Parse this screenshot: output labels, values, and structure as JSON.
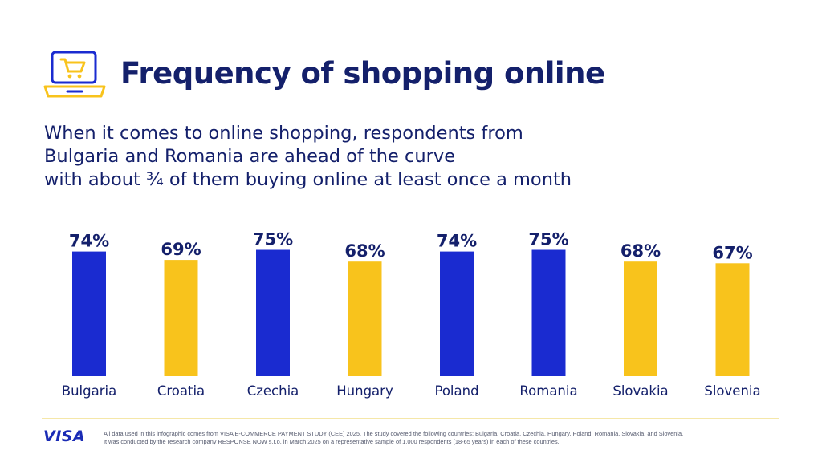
{
  "header": {
    "title": "Frequency of shopping online",
    "icon": "laptop-cart-icon"
  },
  "subtitle": {
    "lines": [
      "When it comes to online shopping, respondents from",
      "Bulgaria and Romania are ahead of the curve",
      "with about ¾ of them buying online at least once a month"
    ]
  },
  "colors": {
    "navy": "#14206b",
    "blue": "#1a2bd0",
    "yellow": "#f8c31c"
  },
  "chart_data": {
    "type": "bar",
    "categories": [
      "Bulgaria",
      "Croatia",
      "Czechia",
      "Hungary",
      "Poland",
      "Romania",
      "Slovakia",
      "Slovenia"
    ],
    "values": [
      74,
      69,
      75,
      68,
      74,
      75,
      68,
      67
    ],
    "value_labels": [
      "74%",
      "69%",
      "75%",
      "68%",
      "74%",
      "75%",
      "68%",
      "67%"
    ],
    "bar_colors": [
      "#1a2bd0",
      "#f8c31c",
      "#1a2bd0",
      "#f8c31c",
      "#1a2bd0",
      "#1a2bd0",
      "#f8c31c",
      "#f8c31c"
    ],
    "ylim": [
      0,
      100
    ],
    "grid": false,
    "legend": "none",
    "title": "Frequency of shopping online",
    "xlabel": "",
    "ylabel": ""
  },
  "footer": {
    "logo": "VISA",
    "note_lines": [
      "All data used in this infographic comes from VISA E-COMMERCE PAYMENT STUDY (CEE) 2025. The study covered the following countries: Bulgaria, Croatia, Czechia, Hungary, Poland, Romania, Slovakia, and Slovenia.",
      "It was conducted by the research company RESPONSE NOW s.r.o. in March 2025 on a representative sample of 1,000 respondents (18-65 years) in each of these countries."
    ]
  }
}
